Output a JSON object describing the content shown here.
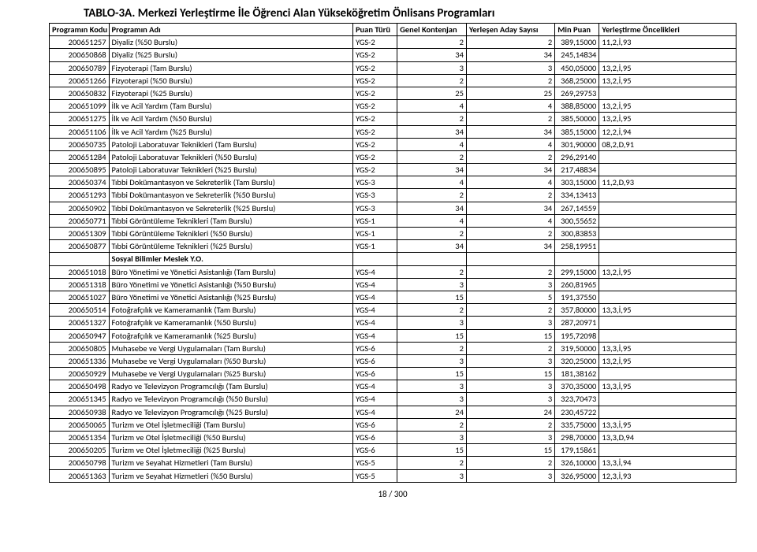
{
  "title": "TABLO-3A. Merkezi Yerleştirme İle Öğrenci Alan Yükseköğretim Önlisans Programları",
  "columns": [
    "Programın Kodu",
    "Programın Adı",
    "Puan Türü",
    "Genel Kontenjan",
    "Yerleşen Aday Sayısı",
    "Min Puan",
    "Yerleştirme Öncelikleri"
  ],
  "footer": "18 / 300",
  "section_row_index": 24,
  "section_label": "Sosyal Bilimler Meslek Y.O.",
  "rows": [
    {
      "kod": "200651257",
      "ad": "Diyaliz (%50 Burslu)",
      "puan": "YGS-2",
      "gk": "2",
      "ya": "2",
      "min": "389,15000",
      "onc": "11,2,İ,93"
    },
    {
      "kod": "200650868",
      "ad": "Diyaliz (%25 Burslu)",
      "puan": "YGS-2",
      "gk": "34",
      "ya": "34",
      "min": "245,14834",
      "onc": ""
    },
    {
      "kod": "200650789",
      "ad": "Fizyoterapi (Tam Burslu)",
      "puan": "YGS-2",
      "gk": "3",
      "ya": "3",
      "min": "450,05000",
      "onc": "13,2,İ,95"
    },
    {
      "kod": "200651266",
      "ad": "Fizyoterapi (%50 Burslu)",
      "puan": "YGS-2",
      "gk": "2",
      "ya": "2",
      "min": "368,25000",
      "onc": "13,2,İ,95"
    },
    {
      "kod": "200650832",
      "ad": "Fizyoterapi (%25 Burslu)",
      "puan": "YGS-2",
      "gk": "25",
      "ya": "25",
      "min": "269,29753",
      "onc": ""
    },
    {
      "kod": "200651099",
      "ad": "İlk ve Acil Yardım (Tam Burslu)",
      "puan": "YGS-2",
      "gk": "4",
      "ya": "4",
      "min": "388,85000",
      "onc": "13,2,İ,95"
    },
    {
      "kod": "200651275",
      "ad": "İlk ve Acil Yardım (%50 Burslu)",
      "puan": "YGS-2",
      "gk": "2",
      "ya": "2",
      "min": "385,50000",
      "onc": "13,2,İ,95"
    },
    {
      "kod": "200651106",
      "ad": "İlk ve Acil Yardım (%25 Burslu)",
      "puan": "YGS-2",
      "gk": "34",
      "ya": "34",
      "min": "385,15000",
      "onc": "12,2,İ,94"
    },
    {
      "kod": "200650735",
      "ad": "Patoloji Laboratuvar Teknikleri (Tam Burslu)",
      "puan": "YGS-2",
      "gk": "4",
      "ya": "4",
      "min": "301,90000",
      "onc": "08,2,D,91"
    },
    {
      "kod": "200651284",
      "ad": "Patoloji Laboratuvar Teknikleri (%50 Burslu)",
      "puan": "YGS-2",
      "gk": "2",
      "ya": "2",
      "min": "296,29140",
      "onc": ""
    },
    {
      "kod": "200650895",
      "ad": "Patoloji Laboratuvar Teknikleri (%25 Burslu)",
      "puan": "YGS-2",
      "gk": "34",
      "ya": "34",
      "min": "217,48834",
      "onc": ""
    },
    {
      "kod": "200650374",
      "ad": "Tıbbi Dokümantasyon ve Sekreterlik (Tam Burslu)",
      "puan": "YGS-3",
      "gk": "4",
      "ya": "4",
      "min": "303,15000",
      "onc": "11,2,D,93"
    },
    {
      "kod": "200651293",
      "ad": "Tıbbi Dokümantasyon ve Sekreterlik (%50 Burslu)",
      "puan": "YGS-3",
      "gk": "2",
      "ya": "2",
      "min": "334,13413",
      "onc": ""
    },
    {
      "kod": "200650902",
      "ad": "Tıbbi Dokümantasyon ve Sekreterlik (%25 Burslu)",
      "puan": "YGS-3",
      "gk": "34",
      "ya": "34",
      "min": "267,14559",
      "onc": ""
    },
    {
      "kod": "200650771",
      "ad": "Tıbbi Görüntüleme Teknikleri (Tam Burslu)",
      "puan": "YGS-1",
      "gk": "4",
      "ya": "4",
      "min": "300,55652",
      "onc": ""
    },
    {
      "kod": "200651309",
      "ad": "Tıbbi Görüntüleme Teknikleri (%50 Burslu)",
      "puan": "YGS-1",
      "gk": "2",
      "ya": "2",
      "min": "300,83853",
      "onc": ""
    },
    {
      "kod": "200650877",
      "ad": "Tıbbi Görüntüleme Teknikleri (%25 Burslu)",
      "puan": "YGS-1",
      "gk": "34",
      "ya": "34",
      "min": "258,19951",
      "onc": ""
    },
    {
      "kod": "200651018",
      "ad": "Büro Yönetimi ve Yönetici Asistanlığı (Tam Burslu)",
      "puan": "YGS-4",
      "gk": "2",
      "ya": "2",
      "min": "299,15000",
      "onc": "13,2,İ,95"
    },
    {
      "kod": "200651318",
      "ad": "Büro Yönetimi ve Yönetici Asistanlığı (%50 Burslu)",
      "puan": "YGS-4",
      "gk": "3",
      "ya": "3",
      "min": "260,81965",
      "onc": ""
    },
    {
      "kod": "200651027",
      "ad": "Büro Yönetimi ve Yönetici Asistanlığı (%25 Burslu)",
      "puan": "YGS-4",
      "gk": "15",
      "ya": "5",
      "min": "191,37550",
      "onc": ""
    },
    {
      "kod": "200650514",
      "ad": "Fotoğrafçılık ve Kameramanlık (Tam Burslu)",
      "puan": "YGS-4",
      "gk": "2",
      "ya": "2",
      "min": "357,80000",
      "onc": "13,3,İ,95"
    },
    {
      "kod": "200651327",
      "ad": "Fotoğrafçılık ve Kameramanlık (%50 Burslu)",
      "puan": "YGS-4",
      "gk": "3",
      "ya": "3",
      "min": "287,20971",
      "onc": ""
    },
    {
      "kod": "200650947",
      "ad": "Fotoğrafçılık ve Kameramanlık (%25 Burslu)",
      "puan": "YGS-4",
      "gk": "15",
      "ya": "15",
      "min": "195,72098",
      "onc": ""
    },
    {
      "kod": "200650805",
      "ad": "Muhasebe ve Vergi Uygulamaları (Tam Burslu)",
      "puan": "YGS-6",
      "gk": "2",
      "ya": "2",
      "min": "319,50000",
      "onc": "13,3,İ,95"
    },
    {
      "kod": "200651336",
      "ad": "Muhasebe ve Vergi Uygulamaları (%50 Burslu)",
      "puan": "YGS-6",
      "gk": "3",
      "ya": "3",
      "min": "320,25000",
      "onc": "13,2,İ,95"
    },
    {
      "kod": "200650929",
      "ad": "Muhasebe ve Vergi Uygulamaları (%25 Burslu)",
      "puan": "YGS-6",
      "gk": "15",
      "ya": "15",
      "min": "181,38162",
      "onc": ""
    },
    {
      "kod": "200650498",
      "ad": "Radyo ve Televizyon Programcılığı (Tam Burslu)",
      "puan": "YGS-4",
      "gk": "3",
      "ya": "3",
      "min": "370,35000",
      "onc": "13,3,İ,95"
    },
    {
      "kod": "200651345",
      "ad": "Radyo ve Televizyon Programcılığı (%50 Burslu)",
      "puan": "YGS-4",
      "gk": "3",
      "ya": "3",
      "min": "323,70473",
      "onc": ""
    },
    {
      "kod": "200650938",
      "ad": "Radyo ve Televizyon Programcılığı (%25 Burslu)",
      "puan": "YGS-4",
      "gk": "24",
      "ya": "24",
      "min": "230,45722",
      "onc": ""
    },
    {
      "kod": "200650065",
      "ad": "Turizm ve Otel İşletmeciliği (Tam Burslu)",
      "puan": "YGS-6",
      "gk": "2",
      "ya": "2",
      "min": "335,75000",
      "onc": "13,3,İ,95"
    },
    {
      "kod": "200651354",
      "ad": "Turizm ve Otel İşletmeciliği (%50 Burslu)",
      "puan": "YGS-6",
      "gk": "3",
      "ya": "3",
      "min": "298,70000",
      "onc": "13,3,D,94"
    },
    {
      "kod": "200650205",
      "ad": "Turizm ve Otel İşletmeciliği (%25 Burslu)",
      "puan": "YGS-6",
      "gk": "15",
      "ya": "15",
      "min": "179,15861",
      "onc": ""
    },
    {
      "kod": "200650798",
      "ad": "Turizm ve Seyahat Hizmetleri (Tam Burslu)",
      "puan": "YGS-5",
      "gk": "2",
      "ya": "2",
      "min": "326,10000",
      "onc": "13,3,İ,94"
    },
    {
      "kod": "200651363",
      "ad": "Turizm ve Seyahat Hizmetleri (%50 Burslu)",
      "puan": "YGS-5",
      "gk": "3",
      "ya": "3",
      "min": "326,95000",
      "onc": "12,3,İ,93"
    }
  ]
}
